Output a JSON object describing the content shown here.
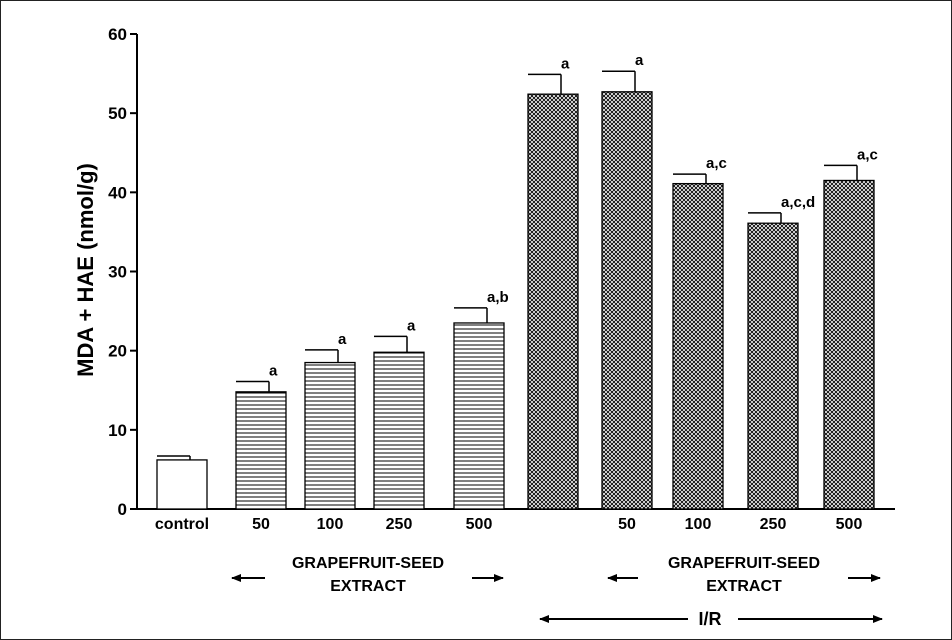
{
  "chart_data": {
    "type": "bar",
    "ylabel": "MDA + HAE (nmol/g)",
    "ylim": [
      0,
      60
    ],
    "yticks": [
      0,
      10,
      20,
      30,
      40,
      50,
      60
    ],
    "grid": false,
    "bars": [
      {
        "label": "control",
        "value": 6.2,
        "error": 0.5,
        "annotation": "",
        "pattern": "none"
      },
      {
        "label": "50",
        "value": 14.8,
        "error": 1.3,
        "annotation": "a",
        "pattern": "horizontal"
      },
      {
        "label": "100",
        "value": 18.5,
        "error": 1.6,
        "annotation": "a",
        "pattern": "horizontal"
      },
      {
        "label": "250",
        "value": 19.8,
        "error": 2.0,
        "annotation": "a",
        "pattern": "horizontal"
      },
      {
        "label": "500",
        "value": 23.5,
        "error": 1.9,
        "annotation": "a,b",
        "pattern": "horizontal"
      },
      {
        "label": "",
        "value": 52.4,
        "error": 2.5,
        "annotation": "a",
        "pattern": "crosshatch"
      },
      {
        "label": "50",
        "value": 52.7,
        "error": 2.6,
        "annotation": "a",
        "pattern": "crosshatch"
      },
      {
        "label": "100",
        "value": 41.1,
        "error": 1.2,
        "annotation": "a,c",
        "pattern": "crosshatch"
      },
      {
        "label": "250",
        "value": 36.1,
        "error": 1.3,
        "annotation": "a,c,d",
        "pattern": "crosshatch"
      },
      {
        "label": "500",
        "value": 41.5,
        "error": 1.9,
        "annotation": "a,c",
        "pattern": "crosshatch"
      }
    ],
    "group_labels": [
      {
        "line1": "GRAPEFRUIT-SEED",
        "line2": "EXTRACT"
      },
      {
        "line1": "GRAPEFRUIT-SEED",
        "line2": "EXTRACT"
      }
    ],
    "bracket_label": "I/R",
    "colors": {
      "bar_stroke": "#000000",
      "background": "#ffffff"
    }
  }
}
